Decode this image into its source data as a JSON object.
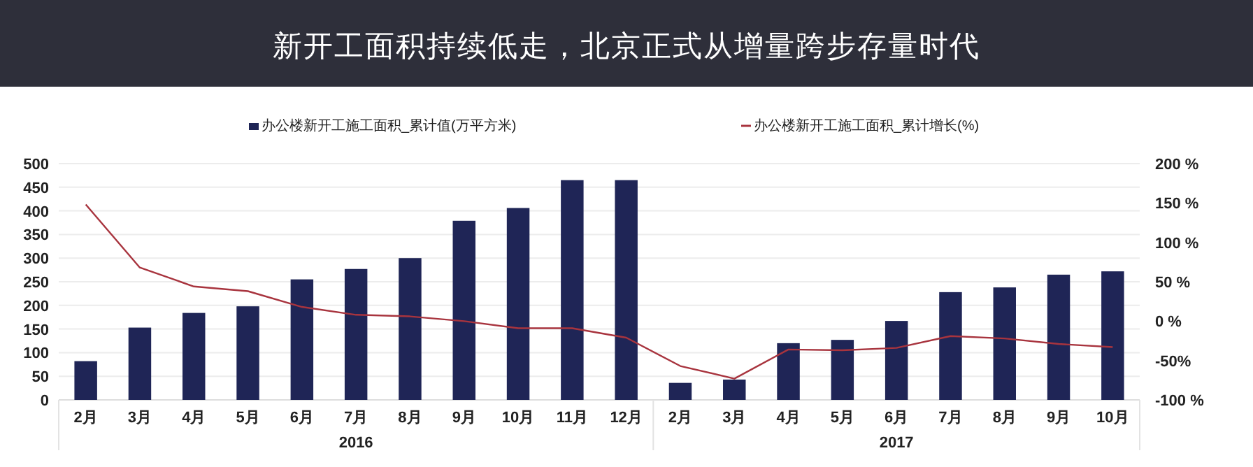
{
  "chart_data": {
    "type": "bar",
    "title": "新开工面积持续低走，北京正式从增量跨步存量时代",
    "categories": [
      "2月",
      "3月",
      "4月",
      "5月",
      "6月",
      "7月",
      "8月",
      "9月",
      "10月",
      "11月",
      "12月",
      "2月",
      "3月",
      "4月",
      "5月",
      "6月",
      "7月",
      "8月",
      "9月",
      "10月"
    ],
    "series": [
      {
        "name": "办公楼新开工施工面积_累计值(万平方米)",
        "color": "#1f2556",
        "values": [
          82,
          153,
          184,
          198,
          255,
          277,
          300,
          379,
          406,
          465,
          465,
          36,
          43,
          120,
          127,
          167,
          228,
          238,
          265,
          272
        ]
      },
      {
        "name": "办公楼新开工施工面积_累计增长(%)",
        "type": "line",
        "axis": "y2",
        "color": "#a8343e",
        "values": [
          148,
          68,
          44,
          38,
          18,
          8,
          6,
          0,
          -9,
          -9,
          -21,
          -57,
          -73,
          -36,
          -37,
          -34,
          -19,
          -22,
          -29,
          -33
        ]
      }
    ],
    "ylim": [
      0,
      500
    ],
    "yticks": [
      0,
      50,
      100,
      150,
      200,
      250,
      300,
      350,
      400,
      450,
      500
    ],
    "y2lim": [
      -100,
      200
    ],
    "y2ticks": [
      {
        "value": -100,
        "label": "-100 %"
      },
      {
        "value": -50,
        "label": "-50%"
      },
      {
        "value": 0,
        "label": "0 %"
      },
      {
        "value": 50,
        "label": "50 %"
      },
      {
        "value": 100,
        "label": "100 %"
      },
      {
        "value": 150,
        "label": "150 %"
      },
      {
        "value": 200,
        "label": "200 %"
      }
    ],
    "annotations": [
      "2016",
      "2017"
    ],
    "grid": "y",
    "legend": "top",
    "marker": "none",
    "line_style": "solid"
  }
}
